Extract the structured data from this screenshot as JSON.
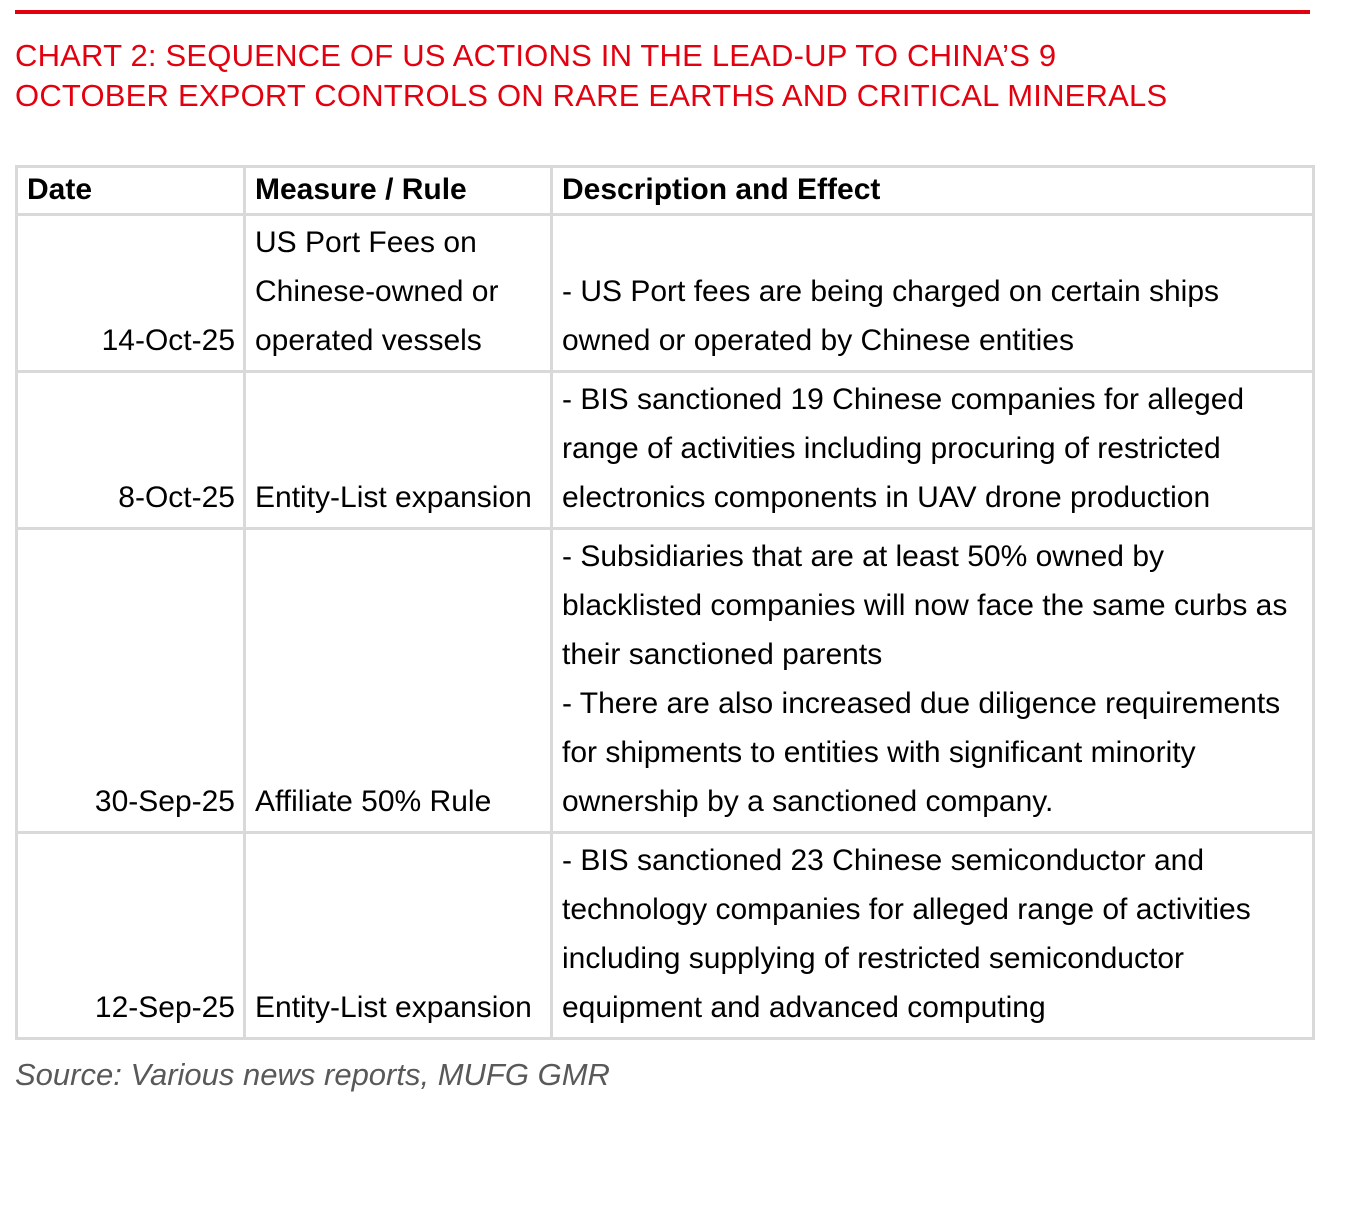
{
  "colors": {
    "accent_red": "#e3000f",
    "table_border_gray": "#d9d9d9",
    "source_text_gray": "#595959",
    "body_text": "#000000"
  },
  "title": {
    "lines": [
      "CHART 2: SEQUENCE OF US ACTIONS IN THE LEAD-UP TO CHINA’S 9",
      "OCTOBER EXPORT CONTROLS ON RARE EARTHS AND CRITICAL MINERALS"
    ]
  },
  "table": {
    "headers": {
      "date": "Date",
      "measure": "Measure / Rule",
      "description": "Description and Effect"
    },
    "rows": [
      {
        "date": "14-Oct-25",
        "measure": "US Port Fees on Chinese-owned or operated vessels",
        "description": "- US Port fees are being charged on certain ships owned or operated by Chinese entities"
      },
      {
        "date": "8-Oct-25",
        "measure": "Entity-List expansion",
        "description": "- BIS sanctioned 19 Chinese companies for alleged range of activities including procuring of restricted electronics components in UAV drone production"
      },
      {
        "date": "30-Sep-25",
        "measure": "Affiliate 50% Rule",
        "description": "- Subsidiaries that are at least 50% owned by blacklisted companies will now face the same curbs as their sanctioned parents\n- There are also increased due diligence requirements for shipments to entities with significant minority ownership by a sanctioned company."
      },
      {
        "date": "12-Sep-25",
        "measure": "Entity-List expansion",
        "description": "- BIS sanctioned 23 Chinese semiconductor and technology companies for alleged range of activities including supplying of restricted semiconductor equipment and advanced computing"
      }
    ]
  },
  "footer": {
    "source": "Source: Various news reports, MUFG GMR"
  }
}
